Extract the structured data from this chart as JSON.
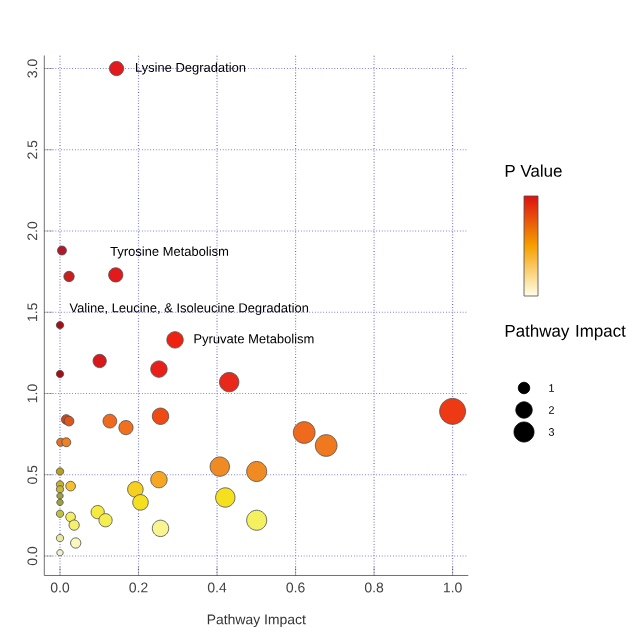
{
  "chart_data": {
    "type": "bubble",
    "xlabel": "Pathway Impact",
    "legend_title": "P Value",
    "xlim": [
      -0.04,
      1.04
    ],
    "ylim": [
      -0.12,
      3.08
    ],
    "xticks": [
      {
        "value": 0,
        "label": "0.0"
      },
      0.2,
      0.4,
      0.6,
      0.8,
      {
        "value": 1,
        "label": "1.0"
      }
    ],
    "yticks": [
      {
        "value": 0,
        "label": "0.0"
      },
      0.5,
      {
        "value": 1,
        "label": "1.0"
      },
      1.5,
      {
        "value": 2,
        "label": "2.0"
      },
      2.5,
      {
        "value": 3,
        "label": "3.0"
      }
    ],
    "grid": true,
    "marker": "circle",
    "size_legend": [
      1,
      2,
      3
    ],
    "x": [
      0.144,
      0.005,
      0.023,
      0.142,
      0.0,
      0.293,
      0.101,
      0.0,
      0.252,
      0.431,
      0.016,
      0.023,
      0.127,
      0.168,
      0.256,
      0.002,
      0.016,
      0.622,
      0.678,
      1.0,
      0.0,
      0.407,
      0.501,
      0.252,
      0.0,
      0.027,
      0.0,
      0.192,
      0.205,
      0.421,
      0.0,
      0.0,
      0.096,
      0.116,
      0.0,
      0.027,
      0.036,
      0.501,
      0.256,
      0.0,
      0.04,
      0.0
    ],
    "values": [
      3.0,
      1.88,
      1.72,
      1.73,
      1.42,
      1.33,
      1.2,
      1.12,
      1.15,
      1.07,
      0.84,
      0.83,
      0.83,
      0.79,
      0.86,
      0.7,
      0.7,
      0.76,
      0.68,
      0.89,
      0.52,
      0.55,
      0.52,
      0.47,
      0.44,
      0.43,
      0.41,
      0.41,
      0.33,
      0.36,
      0.37,
      0.33,
      0.27,
      0.22,
      0.26,
      0.24,
      0.19,
      0.22,
      0.17,
      0.11,
      0.08,
      0.02
    ],
    "sizes": [
      1.5,
      0.6,
      0.8,
      1.5,
      0.4,
      2.0,
      1.3,
      0.4,
      2.0,
      2.8,
      0.7,
      0.7,
      1.4,
      1.5,
      2.0,
      0.5,
      0.6,
      3.5,
      3.5,
      5.0,
      0.4,
      2.8,
      3.0,
      2.0,
      0.4,
      0.7,
      0.4,
      1.8,
      1.8,
      2.8,
      0.3,
      0.3,
      1.3,
      1.3,
      0.4,
      0.7,
      0.8,
      3.0,
      2.0,
      0.4,
      0.8,
      0.3
    ],
    "colors": [
      "#e31a1c",
      "#b2182b",
      "#c81e1e",
      "#e31a1c",
      "#a50f15",
      "#ee2211",
      "#d7191c",
      "#a50f15",
      "#e8201a",
      "#e8281a",
      "#d84315",
      "#e0561a",
      "#f06a1e",
      "#f0701e",
      "#f04a14",
      "#e8701e",
      "#f08020",
      "#f06a1e",
      "#f0781e",
      "#ee3a14",
      "#b8a020",
      "#f08a22",
      "#f08a22",
      "#f5a623",
      "#c8b030",
      "#f5c030",
      "#c8b830",
      "#f5d020",
      "#f5e020",
      "#f5e020",
      "#a0a040",
      "#a0a040",
      "#f5ea40",
      "#f5ee50",
      "#c0c040",
      "#f5ee60",
      "#f5f070",
      "#f5f060",
      "#f8f590",
      "#e8e8a0",
      "#f8f8c0",
      "#f0f0d0"
    ],
    "annotations": [
      {
        "text": "Lysine Degradation",
        "x": 0.144,
        "y": 3.0
      },
      {
        "text": "Tyrosine Metabolism",
        "x": 0.142,
        "y": 1.73
      },
      {
        "text": "Valine, Leucine, & Isoleucine Degradation",
        "x": 0.023,
        "y": 1.72
      },
      {
        "text": "Pyruvate Metabolism",
        "x": 0.293,
        "y": 1.33
      },
      "Pathway Impact"
    ]
  }
}
